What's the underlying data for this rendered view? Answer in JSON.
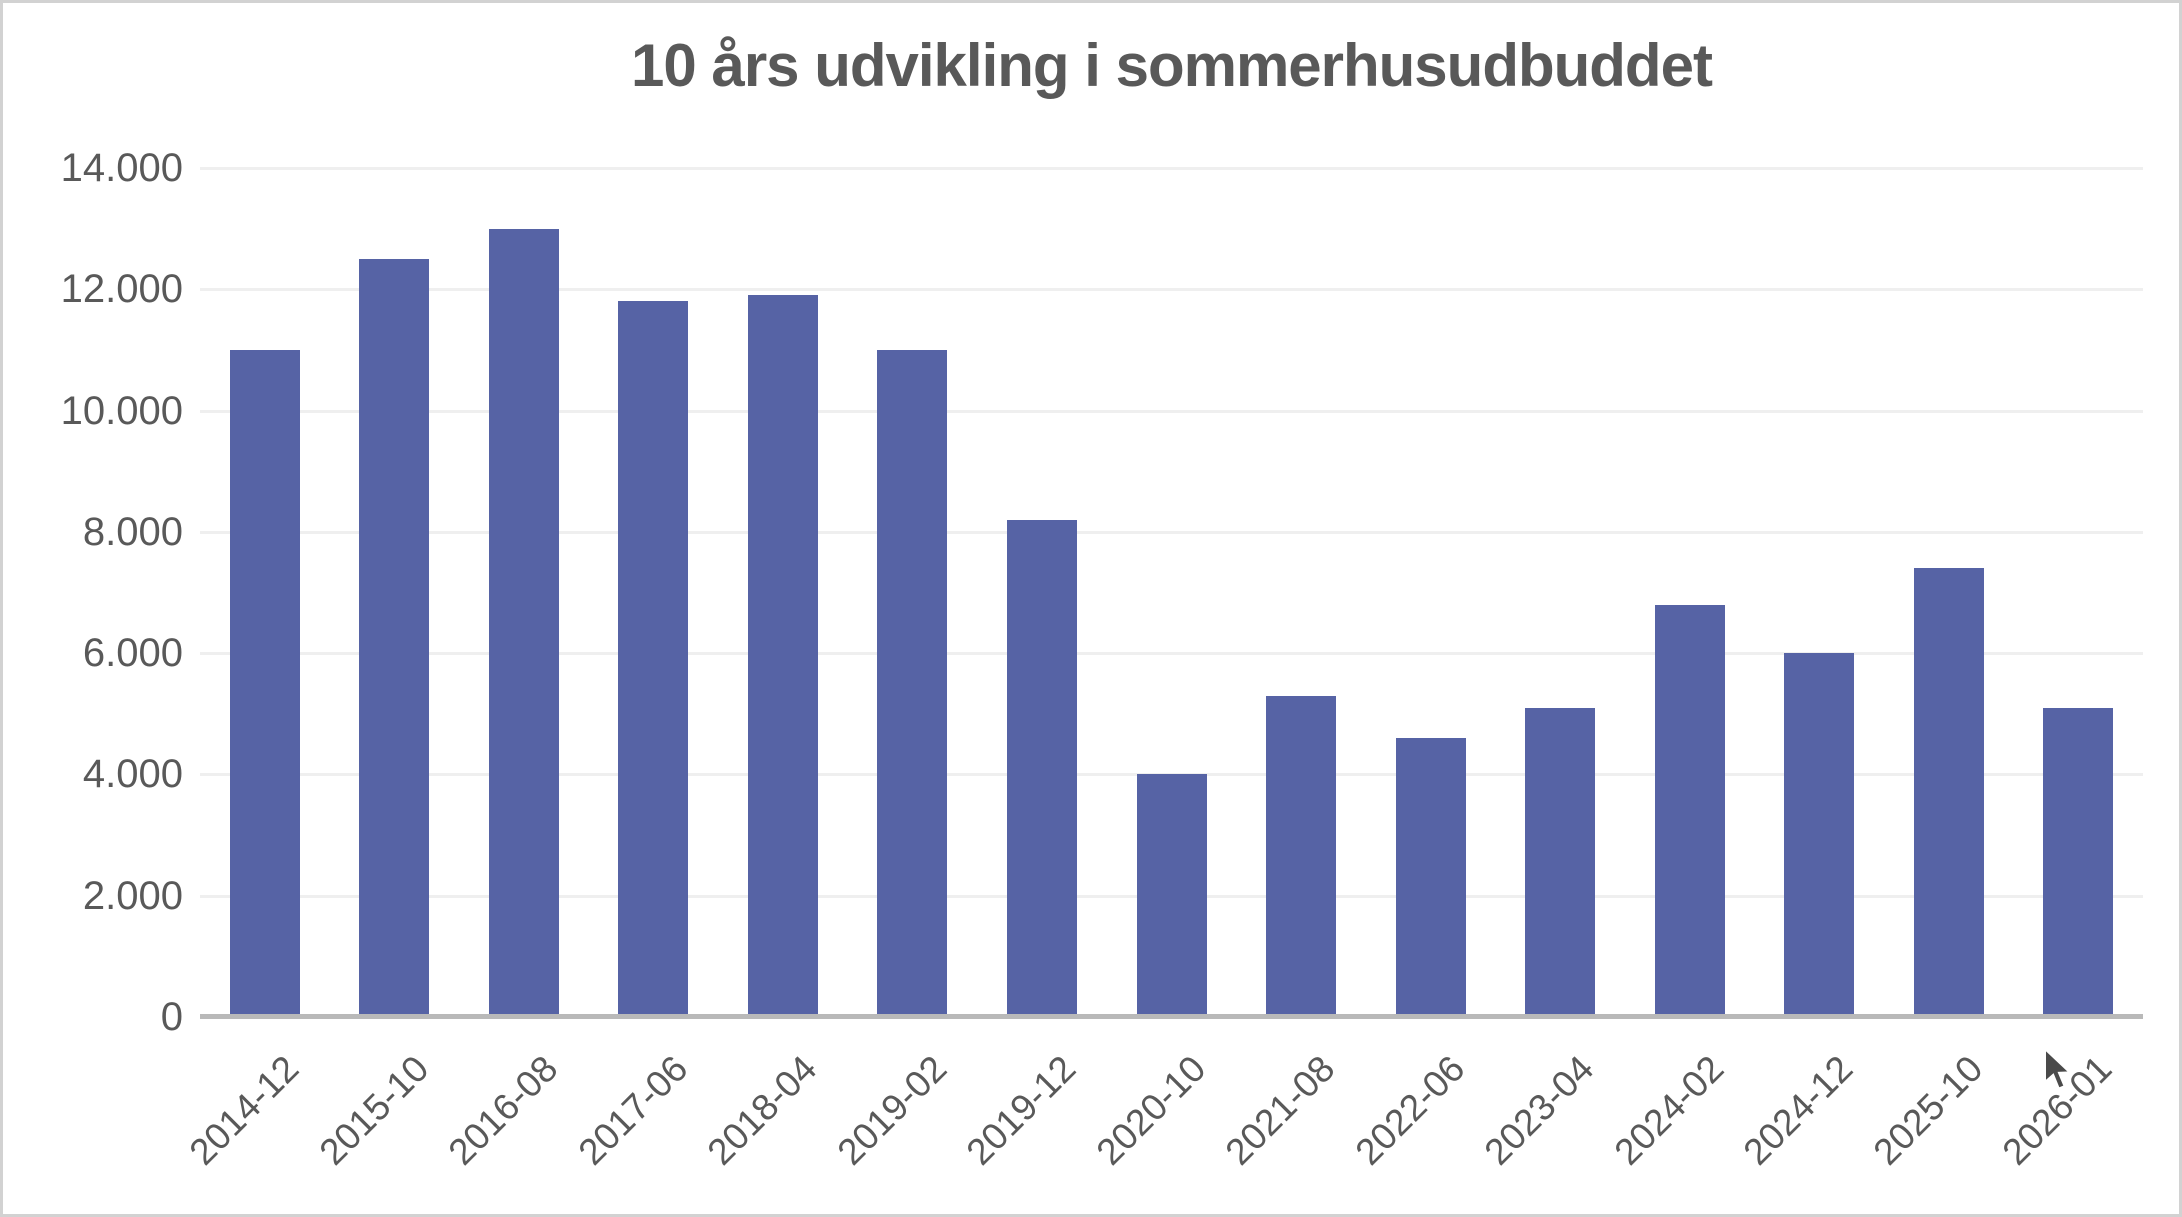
{
  "title": "10 års udvikling i sommerhusudbuddet",
  "colors": {
    "bar": "#5663a5",
    "text": "#595959",
    "gridline": "#efefef",
    "axis_line": "#b9b9b9",
    "frame_border": "#d2d2d2",
    "background": "#ffffff"
  },
  "chart_data": {
    "type": "bar",
    "title": "10 års udvikling i sommerhusudbuddet",
    "categories": [
      "2014-12",
      "2015-10",
      "2016-08",
      "2017-06",
      "2018-04",
      "2019-02",
      "2019-12",
      "2020-10",
      "2021-08",
      "2022-06",
      "2023-04",
      "2024-02",
      "2024-12",
      "2025-10",
      "2026-01"
    ],
    "values": [
      11000,
      12500,
      13000,
      11800,
      11900,
      11000,
      8200,
      4000,
      5300,
      4600,
      5100,
      6800,
      6000,
      7400,
      5100
    ],
    "xlabel": "",
    "ylabel": "",
    "ylim": [
      0,
      14000
    ],
    "ytick_interval": 2000,
    "yticks": [
      {
        "value": 0,
        "label": "0"
      },
      {
        "value": 2000,
        "label": "2.000"
      },
      {
        "value": 4000,
        "label": "4.000"
      },
      {
        "value": 6000,
        "label": "6.000"
      },
      {
        "value": 8000,
        "label": "8.000"
      },
      {
        "value": 10000,
        "label": "10.000"
      },
      {
        "value": 12000,
        "label": "12.000"
      },
      {
        "value": 14000,
        "label": "14.000"
      }
    ],
    "grid": "horizontal-only",
    "legend": "none",
    "bar_color": "#5663a5",
    "xtick_rotation_deg": 45
  }
}
